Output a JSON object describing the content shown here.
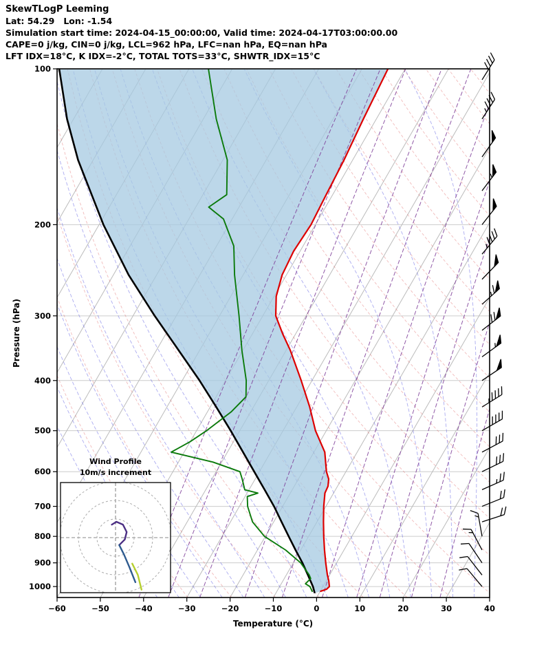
{
  "header": {
    "title": "SkewTLogP Leeming",
    "location": "Lat: 54.29   Lon: -1.54",
    "times": "Simulation start time: 2024-04-15_00:00:00, Valid time: 2024-04-17T03:00:00.00",
    "indices1": "CAPE=0 j/kg, CIN=0 j/kg, LCL=962 hPa, LFC=nan hPa, EQ=nan hPa",
    "indices2": "LFT IDX=18°C, K IDX=-2°C, TOTAL TOTS=33°C, SHWTR_IDX=15°C"
  },
  "chart_data": {
    "type": "skewt-logp",
    "title": "SkewTLogP Leeming",
    "xlabel": "Temperature (°C)",
    "ylabel": "Pressure (hPa)",
    "x_ticks": [
      -60,
      -50,
      -40,
      -30,
      -20,
      -10,
      0,
      10,
      20,
      30,
      40
    ],
    "p_ticks": [
      100,
      200,
      300,
      400,
      500,
      600,
      700,
      800,
      900,
      1000
    ],
    "p_range": [
      100,
      1050
    ],
    "t_range": [
      -60,
      40
    ],
    "skew_tan": 0.5774,
    "grid": {
      "pressure_line_color": "#cccccc",
      "isotherm_color": "#bbbbbb",
      "isotherm_start": -160,
      "isotherm_end": 40,
      "isotherm_step": 10
    },
    "dry_adiabats": {
      "theta_start_K": 240,
      "theta_end_K": 460,
      "step_K": 10,
      "color": "#dd5555",
      "opacity": 0.4
    },
    "moist_adiabats": {
      "t_start_C": -40,
      "t_end_C": 40,
      "step_C": 5,
      "color": "#4444dd",
      "opacity": 0.45
    },
    "mixing_ratio_lines": {
      "values_g_kg": [
        0.1,
        0.2,
        0.4,
        1,
        2,
        4,
        7,
        10,
        16,
        24
      ],
      "color": "#7d3c98",
      "opacity": 0.85
    },
    "temperature_profile": {
      "name": "temperature",
      "color": "#dd0000",
      "points_p_t": [
        [
          1022,
          0
        ],
        [
          1012,
          1.2
        ],
        [
          1000,
          1.5
        ],
        [
          975,
          0.6
        ],
        [
          950,
          -0.5
        ],
        [
          925,
          -1.5
        ],
        [
          900,
          -2.5
        ],
        [
          850,
          -4.5
        ],
        [
          800,
          -6.5
        ],
        [
          750,
          -8.5
        ],
        [
          700,
          -10.5
        ],
        [
          660,
          -12
        ],
        [
          640,
          -12.2
        ],
        [
          620,
          -13
        ],
        [
          600,
          -14.5
        ],
        [
          550,
          -17.5
        ],
        [
          500,
          -22.5
        ],
        [
          450,
          -27
        ],
        [
          400,
          -32.5
        ],
        [
          350,
          -39
        ],
        [
          325,
          -43
        ],
        [
          300,
          -47
        ],
        [
          275,
          -49.5
        ],
        [
          250,
          -51
        ],
        [
          225,
          -51.5
        ],
        [
          200,
          -51
        ],
        [
          175,
          -51.5
        ],
        [
          150,
          -52
        ],
        [
          125,
          -53
        ],
        [
          100,
          -54
        ]
      ]
    },
    "dewpoint_profile": {
      "name": "dewpoint",
      "color": "#0b7a0b",
      "points_p_t": [
        [
          1024,
          -1.7
        ],
        [
          1000,
          -3
        ],
        [
          988,
          -4.4
        ],
        [
          965,
          -3.9
        ],
        [
          950,
          -4.7
        ],
        [
          900,
          -8.3
        ],
        [
          850,
          -13.5
        ],
        [
          800,
          -20.2
        ],
        [
          750,
          -24.9
        ],
        [
          700,
          -28.1
        ],
        [
          670,
          -29.5
        ],
        [
          660,
          -27.5
        ],
        [
          650,
          -31
        ],
        [
          620,
          -33
        ],
        [
          600,
          -34.5
        ],
        [
          575,
          -42
        ],
        [
          550,
          -53
        ],
        [
          525,
          -50
        ],
        [
          500,
          -47.7
        ],
        [
          460,
          -44.5
        ],
        [
          430,
          -43.1
        ],
        [
          400,
          -45.2
        ],
        [
          350,
          -50.2
        ],
        [
          300,
          -55.5
        ],
        [
          250,
          -62
        ],
        [
          220,
          -66
        ],
        [
          195,
          -72
        ],
        [
          185,
          -77
        ],
        [
          175,
          -74.5
        ],
        [
          150,
          -79
        ],
        [
          125,
          -87
        ],
        [
          100,
          -95.5
        ]
      ]
    },
    "parcel_curve": {
      "name": "reference-parcel",
      "color": "#000000",
      "points_p_t": [
        [
          1030,
          -1
        ],
        [
          1000,
          -2.3
        ],
        [
          950,
          -5
        ],
        [
          900,
          -7.9
        ],
        [
          850,
          -11.2
        ],
        [
          800,
          -14.6
        ],
        [
          750,
          -18.2
        ],
        [
          700,
          -22
        ],
        [
          650,
          -26.4
        ],
        [
          600,
          -31.2
        ],
        [
          550,
          -36.4
        ],
        [
          500,
          -42.1
        ],
        [
          450,
          -48.6
        ],
        [
          400,
          -56
        ],
        [
          350,
          -64.8
        ],
        [
          300,
          -75
        ],
        [
          250,
          -86.5
        ],
        [
          200,
          -99
        ],
        [
          150,
          -113.5
        ],
        [
          125,
          -121.5
        ],
        [
          100,
          -130
        ]
      ]
    },
    "shading": {
      "color": "#a6c9e2",
      "opacity": 0.75,
      "between": [
        "parcel_curve",
        "temperature_profile"
      ]
    },
    "wind_barbs": {
      "color": "#000000",
      "levels": [
        {
          "p": 105,
          "kt": 40,
          "from_deg": 212
        },
        {
          "p": 125,
          "kt": 45,
          "from_deg": 213
        },
        {
          "p": 148,
          "kt": 50,
          "from_deg": 215
        },
        {
          "p": 172,
          "kt": 55,
          "from_deg": 217
        },
        {
          "p": 200,
          "kt": 50,
          "from_deg": 218
        },
        {
          "p": 228,
          "kt": 45,
          "from_deg": 220
        },
        {
          "p": 255,
          "kt": 50,
          "from_deg": 224
        },
        {
          "p": 285,
          "kt": 65,
          "from_deg": 228
        },
        {
          "p": 320,
          "kt": 70,
          "from_deg": 232
        },
        {
          "p": 360,
          "kt": 55,
          "from_deg": 234
        },
        {
          "p": 400,
          "kt": 50,
          "from_deg": 236
        },
        {
          "p": 450,
          "kt": 45,
          "from_deg": 238
        },
        {
          "p": 500,
          "kt": 38,
          "from_deg": 240
        },
        {
          "p": 550,
          "kt": 32,
          "from_deg": 242
        },
        {
          "p": 600,
          "kt": 28,
          "from_deg": 244
        },
        {
          "p": 650,
          "kt": 25,
          "from_deg": 246
        },
        {
          "p": 700,
          "kt": 22,
          "from_deg": 248
        },
        {
          "p": 750,
          "kt": 18,
          "from_deg": 252
        },
        {
          "p": 800,
          "kt": 15,
          "from_deg": 170
        },
        {
          "p": 850,
          "kt": 15,
          "from_deg": 152
        },
        {
          "p": 900,
          "kt": 12,
          "from_deg": 146
        },
        {
          "p": 950,
          "kt": 10,
          "from_deg": 142
        },
        {
          "p": 1000,
          "kt": 8,
          "from_deg": 140
        }
      ]
    },
    "hodograph": {
      "title": "Wind Profile",
      "subtitle": "10m/s increment",
      "rings_ms": [
        10,
        20,
        30
      ],
      "segments": [
        {
          "name": "upper-level-winds",
          "color": "#4b2e83",
          "points_uv_ms": [
            [
              2,
              -4
            ],
            [
              5,
              -1
            ],
            [
              6,
              3
            ],
            [
              4,
              7
            ],
            [
              0.5,
              8.5
            ],
            [
              -2,
              7
            ]
          ]
        },
        {
          "name": "mid-level-winds",
          "color": "#2e5b8f",
          "points_uv_ms": [
            [
              2,
              -4
            ],
            [
              4.5,
              -9
            ],
            [
              7.5,
              -16
            ],
            [
              10.7,
              -24
            ]
          ]
        },
        {
          "name": "low-level-winds",
          "color": "#b6cf2e",
          "points_uv_ms": [
            [
              9,
              -14
            ],
            [
              12,
              -20
            ],
            [
              14,
              -28
            ]
          ]
        }
      ]
    }
  }
}
